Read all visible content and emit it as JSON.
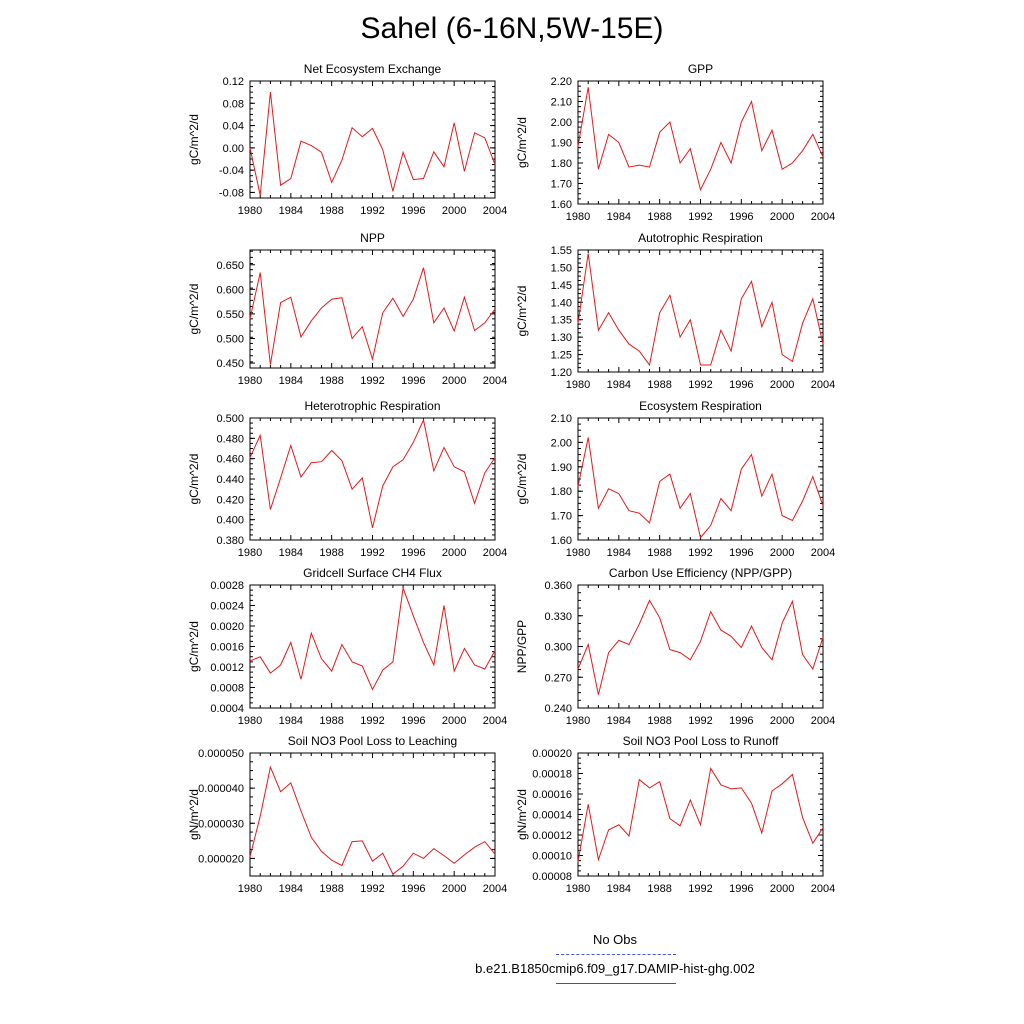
{
  "title": "Sahel (6-16N,5W-15E)",
  "legend": {
    "entries": [
      {
        "label": "No Obs",
        "color": "#4455dd",
        "style": "dashed"
      },
      {
        "label": "b.e21.B1850cmip6.f09_g17.DAMIP-hist-ghg.002",
        "color": "#e31a1c",
        "style": "solid"
      }
    ]
  },
  "chart_data": [
    {
      "type": "line",
      "title": "Net Ecosystem Exchange",
      "ylabel": "gC/m^2/d",
      "xlim": [
        1980,
        2004
      ],
      "ylim": [
        -0.09,
        0.12
      ],
      "xticks": [
        "1980",
        "1984",
        "1988",
        "1992",
        "1996",
        "2000",
        "2004"
      ],
      "yticks": [
        "-0.08",
        "-0.04",
        "0.00",
        "0.04",
        "0.08",
        "0.12"
      ],
      "x": [
        1980,
        1981,
        1982,
        1983,
        1984,
        1985,
        1986,
        1987,
        1988,
        1989,
        1990,
        1991,
        1992,
        1993,
        1994,
        1995,
        1996,
        1997,
        1998,
        1999,
        2000,
        2001,
        2002,
        2003,
        2004
      ],
      "series": [
        {
          "color": "#e31a1c",
          "values": [
            0.0,
            -0.085,
            0.1,
            -0.067,
            -0.055,
            0.012,
            0.004,
            -0.008,
            -0.062,
            -0.022,
            0.036,
            0.02,
            0.035,
            -0.003,
            -0.078,
            -0.008,
            -0.057,
            -0.055,
            -0.007,
            -0.034,
            0.045,
            -0.042,
            0.027,
            0.018,
            -0.03
          ]
        }
      ]
    },
    {
      "type": "line",
      "title": "GPP",
      "ylabel": "gC/m^2/d",
      "xlim": [
        1980,
        2004
      ],
      "ylim": [
        1.6,
        2.2
      ],
      "xticks": [
        "1980",
        "1984",
        "1988",
        "1992",
        "1996",
        "2000",
        "2004"
      ],
      "yticks": [
        "1.60",
        "1.70",
        "1.80",
        "1.90",
        "2.00",
        "2.10",
        "2.20"
      ],
      "x": [
        1980,
        1981,
        1982,
        1983,
        1984,
        1985,
        1986,
        1987,
        1988,
        1989,
        1990,
        1991,
        1992,
        1993,
        1994,
        1995,
        1996,
        1997,
        1998,
        1999,
        2000,
        2001,
        2002,
        2003,
        2004
      ],
      "series": [
        {
          "color": "#e31a1c",
          "values": [
            1.88,
            2.17,
            1.77,
            1.94,
            1.9,
            1.78,
            1.79,
            1.78,
            1.95,
            2.0,
            1.8,
            1.87,
            1.67,
            1.77,
            1.9,
            1.8,
            2.0,
            2.1,
            1.86,
            1.96,
            1.77,
            1.8,
            1.86,
            1.94,
            1.83
          ]
        }
      ]
    },
    {
      "type": "line",
      "title": "NPP",
      "ylabel": "gC/m^2/d",
      "xlim": [
        1980,
        2004
      ],
      "ylim": [
        0.44,
        0.68
      ],
      "xticks": [
        "1980",
        "1984",
        "1988",
        "1992",
        "1996",
        "2000",
        "2004"
      ],
      "yticks": [
        "0.450",
        "0.500",
        "0.550",
        "0.600",
        "0.650"
      ],
      "x": [
        1980,
        1981,
        1982,
        1983,
        1984,
        1985,
        1986,
        1987,
        1988,
        1989,
        1990,
        1991,
        1992,
        1993,
        1994,
        1995,
        1996,
        1997,
        1998,
        1999,
        2000,
        2001,
        2002,
        2003,
        2004
      ],
      "series": [
        {
          "color": "#e31a1c",
          "values": [
            0.54,
            0.634,
            0.447,
            0.573,
            0.584,
            0.503,
            0.536,
            0.562,
            0.58,
            0.583,
            0.5,
            0.524,
            0.458,
            0.552,
            0.582,
            0.545,
            0.58,
            0.644,
            0.532,
            0.562,
            0.515,
            0.584,
            0.516,
            0.532,
            0.56
          ]
        }
      ]
    },
    {
      "type": "line",
      "title": "Autotrophic Respiration",
      "ylabel": "gC/m^2/d",
      "xlim": [
        1980,
        2004
      ],
      "ylim": [
        1.2,
        1.55
      ],
      "xticks": [
        "1980",
        "1984",
        "1988",
        "1992",
        "1996",
        "2000",
        "2004"
      ],
      "yticks": [
        "1.20",
        "1.25",
        "1.30",
        "1.35",
        "1.40",
        "1.45",
        "1.50",
        "1.55"
      ],
      "x": [
        1980,
        1981,
        1982,
        1983,
        1984,
        1985,
        1986,
        1987,
        1988,
        1989,
        1990,
        1991,
        1992,
        1993,
        1994,
        1995,
        1996,
        1997,
        1998,
        1999,
        2000,
        2001,
        2002,
        2003,
        2004
      ],
      "series": [
        {
          "color": "#e31a1c",
          "values": [
            1.34,
            1.54,
            1.32,
            1.37,
            1.32,
            1.28,
            1.26,
            1.22,
            1.37,
            1.42,
            1.3,
            1.35,
            1.22,
            1.22,
            1.32,
            1.26,
            1.41,
            1.46,
            1.33,
            1.4,
            1.25,
            1.23,
            1.34,
            1.41,
            1.28
          ]
        }
      ]
    },
    {
      "type": "line",
      "title": "Heterotrophic Respiration",
      "ylabel": "gC/m^2/d",
      "xlim": [
        1980,
        2004
      ],
      "ylim": [
        0.38,
        0.5
      ],
      "xticks": [
        "1980",
        "1984",
        "1988",
        "1992",
        "1996",
        "2000",
        "2004"
      ],
      "yticks": [
        "0.380",
        "0.400",
        "0.420",
        "0.440",
        "0.460",
        "0.480",
        "0.500"
      ],
      "x": [
        1980,
        1981,
        1982,
        1983,
        1984,
        1985,
        1986,
        1987,
        1988,
        1989,
        1990,
        1991,
        1992,
        1993,
        1994,
        1995,
        1996,
        1997,
        1998,
        1999,
        2000,
        2001,
        2002,
        2003,
        2004
      ],
      "series": [
        {
          "color": "#e31a1c",
          "values": [
            0.461,
            0.483,
            0.41,
            0.441,
            0.473,
            0.442,
            0.456,
            0.457,
            0.468,
            0.458,
            0.43,
            0.441,
            0.392,
            0.433,
            0.452,
            0.459,
            0.476,
            0.498,
            0.448,
            0.471,
            0.452,
            0.447,
            0.416,
            0.446,
            0.461
          ]
        }
      ]
    },
    {
      "type": "line",
      "title": "Ecosystem Respiration",
      "ylabel": "gC/m^2/d",
      "xlim": [
        1980,
        2004
      ],
      "ylim": [
        1.6,
        2.1
      ],
      "xticks": [
        "1980",
        "1984",
        "1988",
        "1992",
        "1996",
        "2000",
        "2004"
      ],
      "yticks": [
        "1.60",
        "1.70",
        "1.80",
        "1.90",
        "2.00",
        "2.10"
      ],
      "x": [
        1980,
        1981,
        1982,
        1983,
        1984,
        1985,
        1986,
        1987,
        1988,
        1989,
        1990,
        1991,
        1992,
        1993,
        1994,
        1995,
        1996,
        1997,
        1998,
        1999,
        2000,
        2001,
        2002,
        2003,
        2004
      ],
      "series": [
        {
          "color": "#e31a1c",
          "values": [
            1.82,
            2.02,
            1.73,
            1.81,
            1.79,
            1.72,
            1.71,
            1.67,
            1.84,
            1.87,
            1.73,
            1.79,
            1.61,
            1.66,
            1.77,
            1.72,
            1.89,
            1.95,
            1.78,
            1.87,
            1.7,
            1.68,
            1.76,
            1.86,
            1.74
          ]
        }
      ]
    },
    {
      "type": "line",
      "title": "Gridcell Surface CH4 Flux",
      "ylabel": "gC/m^2/d",
      "xlim": [
        1980,
        2004
      ],
      "ylim": [
        0.0004,
        0.0028
      ],
      "xticks": [
        "1980",
        "1984",
        "1988",
        "1992",
        "1996",
        "2000",
        "2004"
      ],
      "yticks": [
        "0.0004",
        "0.0008",
        "0.0012",
        "0.0016",
        "0.0020",
        "0.0024",
        "0.0028"
      ],
      "x": [
        1980,
        1981,
        1982,
        1983,
        1984,
        1985,
        1986,
        1987,
        1988,
        1989,
        1990,
        1991,
        1992,
        1993,
        1994,
        1995,
        1996,
        1997,
        1998,
        1999,
        2000,
        2001,
        2002,
        2003,
        2004
      ],
      "series": [
        {
          "color": "#e31a1c",
          "values": [
            0.00132,
            0.0014,
            0.00108,
            0.00124,
            0.00168,
            0.00096,
            0.00186,
            0.00136,
            0.00112,
            0.00164,
            0.0013,
            0.00122,
            0.00076,
            0.00114,
            0.0013,
            0.00274,
            0.0022,
            0.00168,
            0.00124,
            0.0024,
            0.00112,
            0.00156,
            0.00124,
            0.00116,
            0.00152
          ]
        }
      ]
    },
    {
      "type": "line",
      "title": "Carbon Use Efficiency (NPP/GPP)",
      "ylabel": "NPP/GPP",
      "xlim": [
        1980,
        2004
      ],
      "ylim": [
        0.24,
        0.36
      ],
      "xticks": [
        "1980",
        "1984",
        "1988",
        "1992",
        "1996",
        "2000",
        "2004"
      ],
      "yticks": [
        "0.240",
        "0.270",
        "0.300",
        "0.330",
        "0.360"
      ],
      "x": [
        1980,
        1981,
        1982,
        1983,
        1984,
        1985,
        1986,
        1987,
        1988,
        1989,
        1990,
        1991,
        1992,
        1993,
        1994,
        1995,
        1996,
        1997,
        1998,
        1999,
        2000,
        2001,
        2002,
        2003,
        2004
      ],
      "series": [
        {
          "color": "#e31a1c",
          "values": [
            0.278,
            0.302,
            0.253,
            0.294,
            0.306,
            0.302,
            0.322,
            0.345,
            0.328,
            0.297,
            0.294,
            0.287,
            0.305,
            0.334,
            0.316,
            0.31,
            0.299,
            0.32,
            0.299,
            0.287,
            0.323,
            0.344,
            0.292,
            0.278,
            0.309
          ]
        }
      ]
    },
    {
      "type": "line",
      "title": "Soil NO3 Pool Loss to Leaching",
      "ylabel": "gN/m^2/d",
      "xlim": [
        1980,
        2004
      ],
      "ylim": [
        1.5e-05,
        5e-05
      ],
      "xticks": [
        "1980",
        "1984",
        "1988",
        "1992",
        "1996",
        "2000",
        "2004"
      ],
      "yticks": [
        "0.000020",
        "0.000030",
        "0.000040",
        "0.000050"
      ],
      "x": [
        1980,
        1981,
        1982,
        1983,
        1984,
        1985,
        1986,
        1987,
        1988,
        1989,
        1990,
        1991,
        1992,
        1993,
        1994,
        1995,
        1996,
        1997,
        1998,
        1999,
        2000,
        2001,
        2002,
        2003,
        2004
      ],
      "series": [
        {
          "color": "#e31a1c",
          "values": [
            2.05e-05,
            3.2e-05,
            4.6e-05,
            3.9e-05,
            4.15e-05,
            3.35e-05,
            2.6e-05,
            2.2e-05,
            1.95e-05,
            1.8e-05,
            2.48e-05,
            2.5e-05,
            1.92e-05,
            2.15e-05,
            1.55e-05,
            1.78e-05,
            2.15e-05,
            2e-05,
            2.28e-05,
            2.08e-05,
            1.86e-05,
            2.1e-05,
            2.32e-05,
            2.48e-05,
            2.12e-05
          ]
        }
      ]
    },
    {
      "type": "line",
      "title": "Soil NO3 Pool Loss to Runoff",
      "ylabel": "gN/m^2/d",
      "xlim": [
        1980,
        2004
      ],
      "ylim": [
        8e-05,
        0.0002
      ],
      "xticks": [
        "1980",
        "1984",
        "1988",
        "1992",
        "1996",
        "2000",
        "2004"
      ],
      "yticks": [
        "0.00008",
        "0.00010",
        "0.00012",
        "0.00014",
        "0.00016",
        "0.00018",
        "0.00020"
      ],
      "x": [
        1980,
        1981,
        1982,
        1983,
        1984,
        1985,
        1986,
        1987,
        1988,
        1989,
        1990,
        1991,
        1992,
        1993,
        1994,
        1995,
        1996,
        1997,
        1998,
        1999,
        2000,
        2001,
        2002,
        2003,
        2004
      ],
      "series": [
        {
          "color": "#e31a1c",
          "values": [
            9.4e-05,
            0.00015,
            9.6e-05,
            0.000125,
            0.00013,
            0.000119,
            0.000174,
            0.000166,
            0.000172,
            0.000136,
            0.000129,
            0.000154,
            0.00013,
            0.000185,
            0.000169,
            0.000165,
            0.000166,
            0.000151,
            0.000122,
            0.000163,
            0.00017,
            0.000179,
            0.000137,
            0.000112,
            0.000127
          ]
        }
      ]
    }
  ]
}
